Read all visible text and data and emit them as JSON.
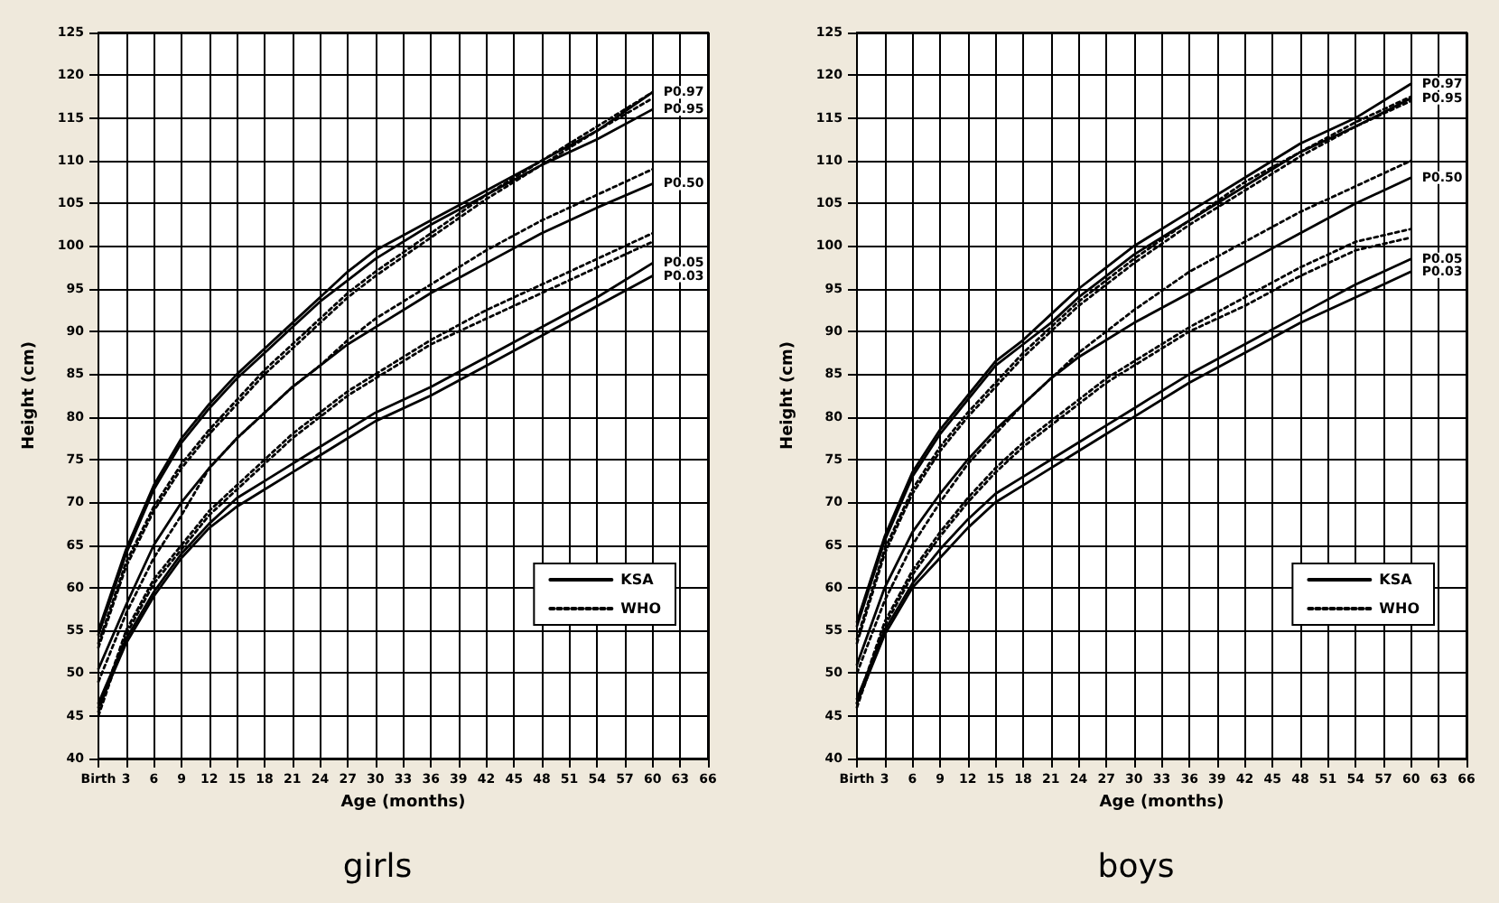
{
  "chart_data": [
    {
      "type": "line",
      "title": "girls",
      "xlabel": "Age (months)",
      "ylabel": "Height (cm)",
      "xlim": [
        0,
        66
      ],
      "ylim": [
        40,
        125
      ],
      "xticks": [
        {
          "value": 0,
          "label": "Birth"
        },
        3,
        6,
        9,
        12,
        15,
        18,
        21,
        24,
        27,
        30,
        33,
        36,
        39,
        42,
        45,
        48,
        51,
        54,
        57,
        60,
        63,
        66
      ],
      "yticks": [
        40,
        45,
        50,
        55,
        60,
        65,
        70,
        75,
        80,
        85,
        90,
        95,
        100,
        105,
        110,
        115,
        120,
        125
      ],
      "grid": true,
      "legend": "bottom right",
      "marker": "none",
      "x": [
        0,
        3,
        6,
        9,
        12,
        15,
        18,
        21,
        24,
        27,
        30,
        36,
        42,
        48,
        54,
        60
      ],
      "series": [
        {
          "name": "KSA",
          "color": "#000000",
          "line_style": "solid",
          "values": [
            55,
            64.5,
            72,
            77.5,
            81.5,
            85,
            88,
            91,
            94,
            97,
            99.5,
            103,
            106.5,
            110,
            113.5,
            118
          ]
        },
        {
          "color": "#000000",
          "line_style": "solid",
          "values": [
            54.5,
            64,
            71.5,
            77,
            81,
            84.5,
            87.5,
            90.5,
            93.5,
            96,
            98.5,
            102.5,
            106,
            109.5,
            112.5,
            116
          ]
        },
        {
          "color": "#000000",
          "line_style": "solid",
          "values": [
            50.5,
            58,
            65,
            70,
            74,
            77.5,
            80.5,
            83.5,
            86,
            88.5,
            90.5,
            94.5,
            98,
            101.5,
            104.5,
            107.3
          ]
        },
        {
          "color": "#000000",
          "line_style": "solid",
          "values": [
            46.5,
            54,
            59.5,
            64,
            67.5,
            70.5,
            72.5,
            74.5,
            76.5,
            78.5,
            80.5,
            83.5,
            87,
            90.5,
            94,
            98
          ]
        },
        {
          "color": "#000000",
          "line_style": "solid",
          "values": [
            46,
            53.5,
            59,
            63.5,
            67,
            69.5,
            71.5,
            73.5,
            75.5,
            77.5,
            79.5,
            82.5,
            86,
            89.5,
            93,
            96.5
          ]
        },
        {
          "name": "WHO",
          "color": "#000000",
          "line_style": "dotted",
          "values": [
            53.5,
            63,
            69.5,
            74.5,
            78.5,
            82,
            85.5,
            88.5,
            91.5,
            94.5,
            97,
            101.5,
            106,
            110,
            114,
            118
          ]
        },
        {
          "color": "#000000",
          "line_style": "dotted",
          "values": [
            53,
            62.5,
            69,
            74,
            78,
            81.5,
            85,
            88,
            91,
            94,
            96.5,
            101,
            105.5,
            109.5,
            113.5,
            117.3
          ]
        },
        {
          "color": "#000000",
          "line_style": "dotted",
          "values": [
            49,
            57,
            63.5,
            68.5,
            74,
            77.5,
            80.5,
            83.5,
            86,
            89,
            91.5,
            95.5,
            99.5,
            103,
            106,
            109
          ]
        },
        {
          "color": "#000000",
          "line_style": "dotted",
          "values": [
            45.5,
            55,
            61,
            65,
            69,
            72,
            75,
            78,
            80.5,
            83,
            85,
            89,
            92.5,
            95.5,
            98.5,
            101.5
          ]
        },
        {
          "color": "#000000",
          "line_style": "dotted",
          "values": [
            45,
            54.5,
            60.5,
            64.5,
            68.5,
            71.5,
            74.5,
            77.5,
            80,
            82.5,
            84.5,
            88.5,
            91.5,
            94.5,
            97.5,
            100.5
          ]
        }
      ],
      "annotations": [
        "P0.97",
        "P0.95",
        "P0.50",
        "P0.05",
        "P0.03"
      ]
    },
    {
      "type": "line",
      "title": "boys",
      "xlabel": "Age (months)",
      "ylabel": "Height (cm)",
      "xlim": [
        0,
        66
      ],
      "ylim": [
        40,
        125
      ],
      "xticks": [
        {
          "value": 0,
          "label": "Birth"
        },
        3,
        6,
        9,
        12,
        15,
        18,
        21,
        24,
        27,
        30,
        33,
        36,
        39,
        42,
        45,
        48,
        51,
        54,
        57,
        60,
        63,
        66
      ],
      "yticks": [
        40,
        45,
        50,
        55,
        60,
        65,
        70,
        75,
        80,
        85,
        90,
        95,
        100,
        105,
        110,
        115,
        120,
        125
      ],
      "grid": true,
      "legend": "bottom right",
      "marker": "none",
      "x": [
        0,
        3,
        6,
        9,
        12,
        15,
        18,
        21,
        24,
        27,
        30,
        36,
        42,
        48,
        54,
        60
      ],
      "series": [
        {
          "name": "KSA",
          "color": "#000000",
          "line_style": "solid",
          "values": [
            56,
            66,
            73.5,
            78.5,
            82.5,
            86.5,
            89,
            92,
            95,
            97.5,
            100,
            104,
            108,
            112,
            115,
            119
          ]
        },
        {
          "color": "#000000",
          "line_style": "solid",
          "values": [
            55.5,
            65.5,
            73,
            78,
            82,
            86,
            88.5,
            91,
            94,
            96.5,
            99,
            103,
            107,
            111,
            114,
            117.3
          ]
        },
        {
          "color": "#000000",
          "line_style": "solid",
          "values": [
            51,
            60,
            66.5,
            71,
            75,
            78.5,
            81.5,
            84.5,
            87,
            89,
            91,
            94.5,
            98,
            101.5,
            105,
            108
          ]
        },
        {
          "color": "#000000",
          "line_style": "solid",
          "values": [
            47,
            55,
            60.5,
            64.5,
            68,
            71,
            73,
            75,
            77,
            79,
            81,
            85,
            88.5,
            92,
            95.5,
            98.5
          ]
        },
        {
          "color": "#000000",
          "line_style": "solid",
          "values": [
            46.5,
            54.5,
            60,
            63.5,
            67,
            70,
            72,
            74,
            76,
            78,
            80,
            84,
            87.5,
            91,
            94,
            97
          ]
        },
        {
          "name": "WHO",
          "color": "#000000",
          "line_style": "dotted",
          "values": [
            54,
            64.5,
            71.5,
            76.5,
            80.5,
            84,
            87.5,
            90.5,
            93.5,
            96,
            98.5,
            103,
            107.5,
            111,
            114.5,
            117.5
          ]
        },
        {
          "color": "#000000",
          "line_style": "dotted",
          "values": [
            53.5,
            64,
            71,
            76,
            80,
            83.5,
            87,
            90,
            93,
            95.5,
            98,
            102.5,
            106.5,
            110.5,
            114,
            117
          ]
        },
        {
          "color": "#000000",
          "line_style": "dotted",
          "values": [
            50,
            58.5,
            65,
            70,
            74.5,
            78,
            81.5,
            84.5,
            87.5,
            90,
            92.5,
            97,
            100.5,
            104,
            107,
            110
          ]
        },
        {
          "color": "#000000",
          "line_style": "dotted",
          "values": [
            46.5,
            56,
            62,
            66.5,
            70.5,
            74,
            77,
            79.5,
            82,
            84.5,
            86.5,
            90.5,
            94,
            97.5,
            100.5,
            102
          ]
        },
        {
          "color": "#000000",
          "line_style": "dotted",
          "values": [
            46,
            55.5,
            61.5,
            66,
            70,
            73.5,
            76.5,
            79,
            81.5,
            84,
            86,
            90,
            93,
            96.5,
            99.5,
            101
          ]
        }
      ],
      "annotations": [
        "P0.97",
        "P0.95",
        "P0.50",
        "P0.05",
        "P0.03"
      ]
    }
  ]
}
